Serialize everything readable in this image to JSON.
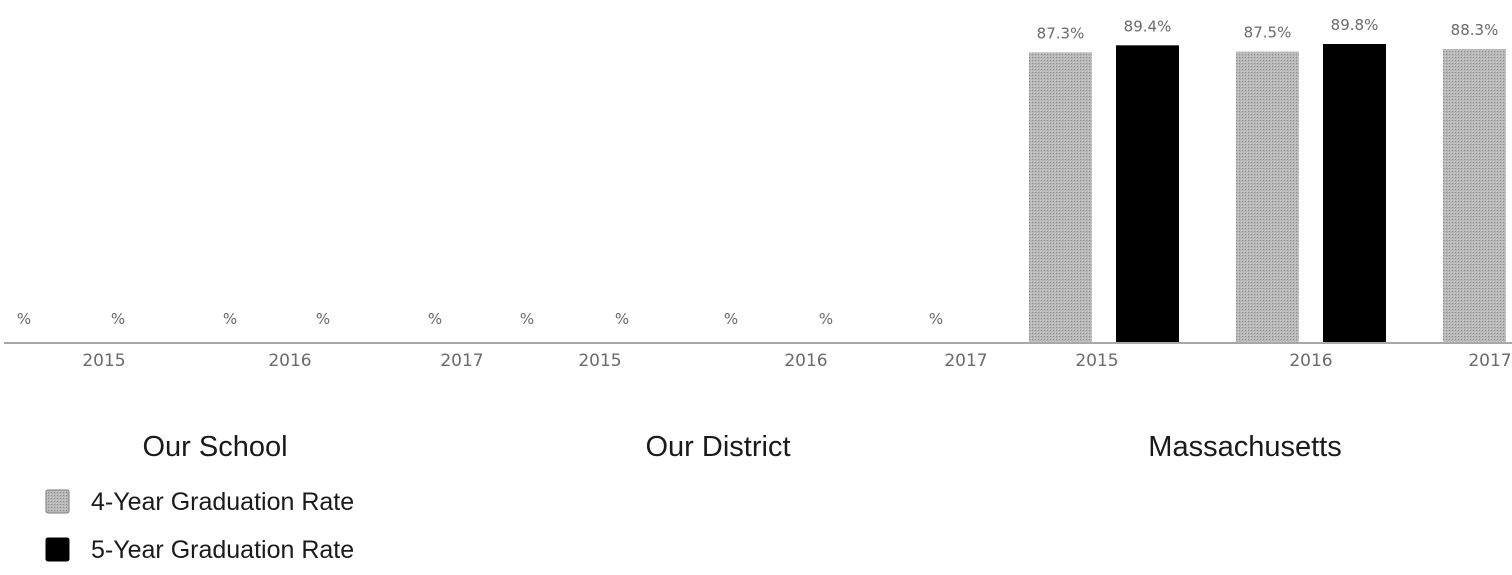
{
  "chart_data": {
    "type": "bar",
    "ylim": [
      0,
      100
    ],
    "grid": false,
    "legend_placement": "bottom-left",
    "colors": {
      "four_year": "#b4b4b4",
      "five_year": "#000000",
      "axis": "#8c8c8c",
      "value_text": "#6a6a6a",
      "group_text": "#1a1a1a"
    },
    "series": [
      {
        "name": "4-Year Graduation Rate",
        "key": "four_year"
      },
      {
        "name": "5-Year Graduation Rate",
        "key": "five_year"
      }
    ],
    "value_labels": [
      {
        "text": "%",
        "value": null,
        "series": "four_year"
      },
      {
        "text": "%",
        "value": null,
        "series": "five_year"
      },
      {
        "text": "%",
        "value": null,
        "series": "four_year"
      },
      {
        "text": "%",
        "value": null,
        "series": "five_year"
      },
      {
        "text": "%",
        "value": null,
        "series": "four_year"
      },
      {
        "text": "%",
        "value": null,
        "series": "five_year"
      },
      {
        "text": "%",
        "value": null,
        "series": "four_year"
      },
      {
        "text": "%",
        "value": null,
        "series": "five_year"
      },
      {
        "text": "%",
        "value": null,
        "series": "four_year"
      },
      {
        "text": "%",
        "value": null,
        "series": "five_year"
      },
      {
        "text": "87.3%",
        "value": 87.3,
        "series": "four_year"
      },
      {
        "text": "89.4%",
        "value": 89.4,
        "series": "five_year"
      },
      {
        "text": "87.5%",
        "value": 87.5,
        "series": "four_year"
      },
      {
        "text": "89.8%",
        "value": 89.8,
        "series": "five_year"
      },
      {
        "text": "88.3%",
        "value": 88.3,
        "series": "four_year"
      }
    ],
    "year_labels": [
      "2015",
      "2016",
      "2017",
      "2015",
      "2016",
      "2017",
      "2015",
      "2016",
      "2017"
    ],
    "groups": [
      {
        "name": "Our School"
      },
      {
        "name": "Our District"
      },
      {
        "name": "Massachusetts"
      }
    ]
  }
}
